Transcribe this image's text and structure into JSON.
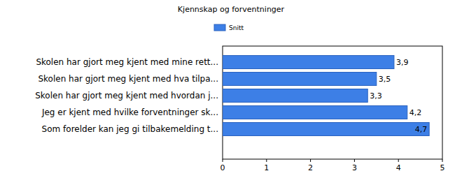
{
  "chart_data": {
    "type": "bar",
    "orientation": "horizontal",
    "title": "Kjennskap og forventninger",
    "categories": [
      "Skolen har gjort meg kjent med mine rett...",
      "Skolen har gjort meg kjent med hva tilpa...",
      "Skolen har gjort meg kjent med hvordan j...",
      "Jeg er kjent med hvilke forventninger sk...",
      "Som forelder kan jeg gi tilbakemelding t..."
    ],
    "series": [
      {
        "name": "Snitt",
        "color": "#3d7fe6",
        "values": [
          3.9,
          3.5,
          3.3,
          4.2,
          4.7
        ],
        "value_labels": [
          "3,9",
          "3,5",
          "3,3",
          "4,2",
          "4,7"
        ]
      }
    ],
    "xlim": [
      0,
      5
    ],
    "xticks": [
      0,
      1,
      2,
      3,
      4,
      5
    ],
    "grid": false,
    "legend": "top",
    "data_labels": true
  }
}
